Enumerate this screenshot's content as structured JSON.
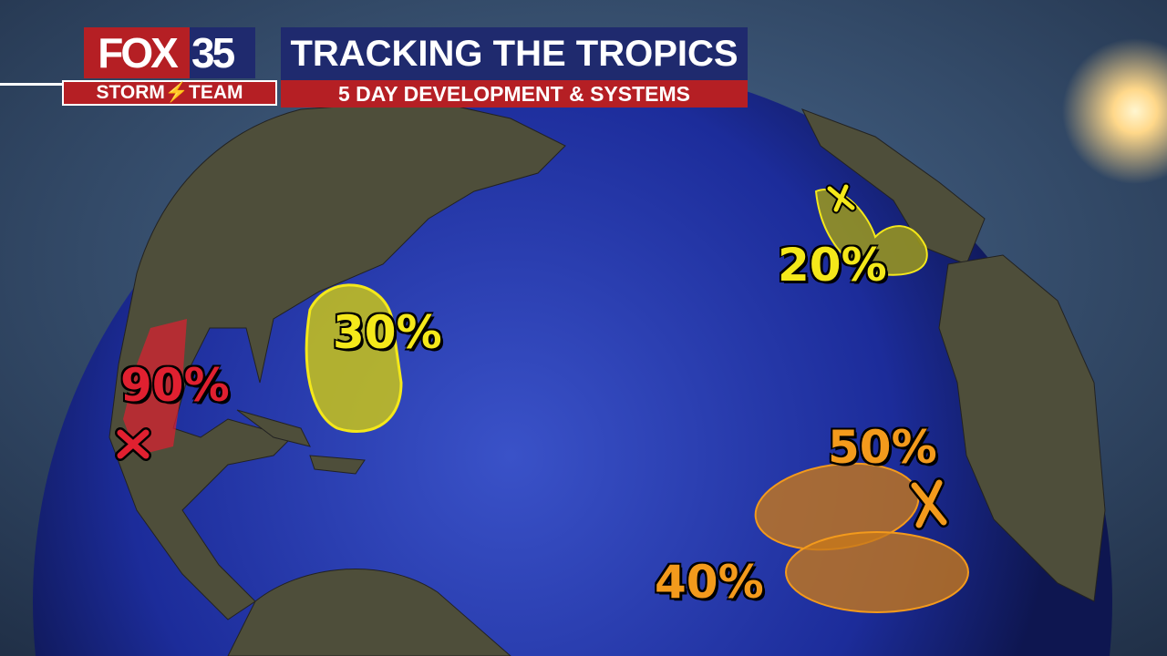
{
  "logo": {
    "brand": "FOX",
    "channel": "35",
    "team": "STORM⚡TEAM"
  },
  "header": {
    "title": "TRACKING THE TROPICS",
    "subtitle": "5 DAY DEVELOPMENT & SYSTEMS"
  },
  "systems": [
    {
      "chance": "90%",
      "color": "#e02030"
    },
    {
      "chance": "30%",
      "color": "#f4e81a"
    },
    {
      "chance": "20%",
      "color": "#f4e81a"
    },
    {
      "chance": "50%",
      "color": "#f39a1c"
    },
    {
      "chance": "40%",
      "color": "#f39a1c"
    }
  ],
  "colors": {
    "ocean": "#1c2c9a",
    "land": "#4d4d3a",
    "banner_blue": "#1f2a6e",
    "banner_red": "#b51f24"
  }
}
